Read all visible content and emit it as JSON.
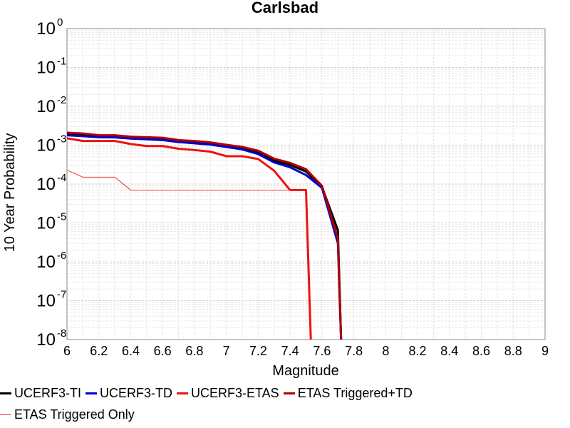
{
  "chart_data": {
    "type": "line",
    "title": "Carlsbad",
    "xlabel": "Magnitude",
    "ylabel": "10 Year Probability",
    "xlim": [
      6,
      9
    ],
    "ylim": [
      1e-08,
      1
    ],
    "yscale": "log",
    "grid": true,
    "legend_position": "bottom",
    "x_ticks": [
      "6",
      "6.2",
      "6.4",
      "6.6",
      "6.8",
      "7",
      "7.2",
      "7.4",
      "7.6",
      "7.8",
      "8",
      "8.2",
      "8.4",
      "8.6",
      "8.8",
      "9"
    ],
    "y_ticks": [
      {
        "base": "10",
        "exp": "0"
      },
      {
        "base": "10",
        "exp": "-1"
      },
      {
        "base": "10",
        "exp": "-2"
      },
      {
        "base": "10",
        "exp": "-3"
      },
      {
        "base": "10",
        "exp": "-4"
      },
      {
        "base": "10",
        "exp": "-5"
      },
      {
        "base": "10",
        "exp": "-6"
      },
      {
        "base": "10",
        "exp": "-7"
      },
      {
        "base": "10",
        "exp": "-8"
      }
    ],
    "series": [
      {
        "name": "UCERF3-TI",
        "color": "#000000",
        "width": 3,
        "x": [
          6.0,
          6.1,
          6.2,
          6.3,
          6.4,
          6.5,
          6.6,
          6.7,
          6.8,
          6.9,
          7.0,
          7.1,
          7.2,
          7.3,
          7.4,
          7.5,
          7.6,
          7.7,
          7.72
        ],
        "y": [
          0.00195,
          0.00185,
          0.0017,
          0.0017,
          0.00158,
          0.00152,
          0.00145,
          0.00128,
          0.00123,
          0.00112,
          0.00098,
          0.00086,
          0.00066,
          0.0004,
          0.00031,
          0.00021,
          8.5e-05,
          6.5e-06,
          1e-08
        ]
      },
      {
        "name": "UCERF3-TD",
        "color": "#0000cc",
        "width": 3,
        "x": [
          6.0,
          6.1,
          6.2,
          6.3,
          6.4,
          6.5,
          6.6,
          6.7,
          6.8,
          6.9,
          7.0,
          7.1,
          7.2,
          7.3,
          7.4,
          7.5,
          7.6,
          7.7,
          7.72
        ],
        "y": [
          0.0018,
          0.0017,
          0.0016,
          0.00158,
          0.00148,
          0.00142,
          0.00135,
          0.0012,
          0.00112,
          0.00103,
          0.0009,
          0.00078,
          0.00059,
          0.00036,
          0.00027,
          0.00017,
          8e-05,
          3e-06,
          1e-08
        ]
      },
      {
        "name": "UCERF3-ETAS",
        "color": "#ee1111",
        "width": 3,
        "x": [
          6.0,
          6.1,
          6.2,
          6.3,
          6.4,
          6.5,
          6.6,
          6.7,
          6.8,
          6.9,
          7.0,
          7.1,
          7.2,
          7.3,
          7.4,
          7.5,
          7.53
        ],
        "y": [
          0.0015,
          0.00128,
          0.00128,
          0.00128,
          0.00107,
          0.00095,
          0.00095,
          0.00081,
          0.00075,
          0.00068,
          0.00052,
          0.00052,
          0.00044,
          0.00022,
          7e-05,
          7e-05,
          1e-08
        ]
      },
      {
        "name": "ETAS Triggered+TD",
        "color": "#b00000",
        "width": 3,
        "x": [
          6.0,
          6.1,
          6.2,
          6.3,
          6.4,
          6.5,
          6.6,
          6.7,
          6.8,
          6.9,
          7.0,
          7.1,
          7.2,
          7.3,
          7.4,
          7.5,
          7.6,
          7.7,
          7.72
        ],
        "y": [
          0.0021,
          0.002,
          0.0018,
          0.0018,
          0.00165,
          0.0016,
          0.00155,
          0.00135,
          0.00128,
          0.00118,
          0.00102,
          0.0009,
          0.00072,
          0.00045,
          0.00035,
          0.00024,
          9e-05,
          4e-06,
          1e-08
        ]
      },
      {
        "name": "ETAS Triggered Only",
        "color": "#ee3333",
        "width": 1,
        "x": [
          6.0,
          6.1,
          6.2,
          6.3,
          6.4,
          6.5,
          7.49,
          7.49
        ],
        "y": [
          0.00023,
          0.00015,
          0.00015,
          0.00015,
          7e-05,
          7e-05,
          7e-05,
          7e-05
        ]
      }
    ]
  }
}
